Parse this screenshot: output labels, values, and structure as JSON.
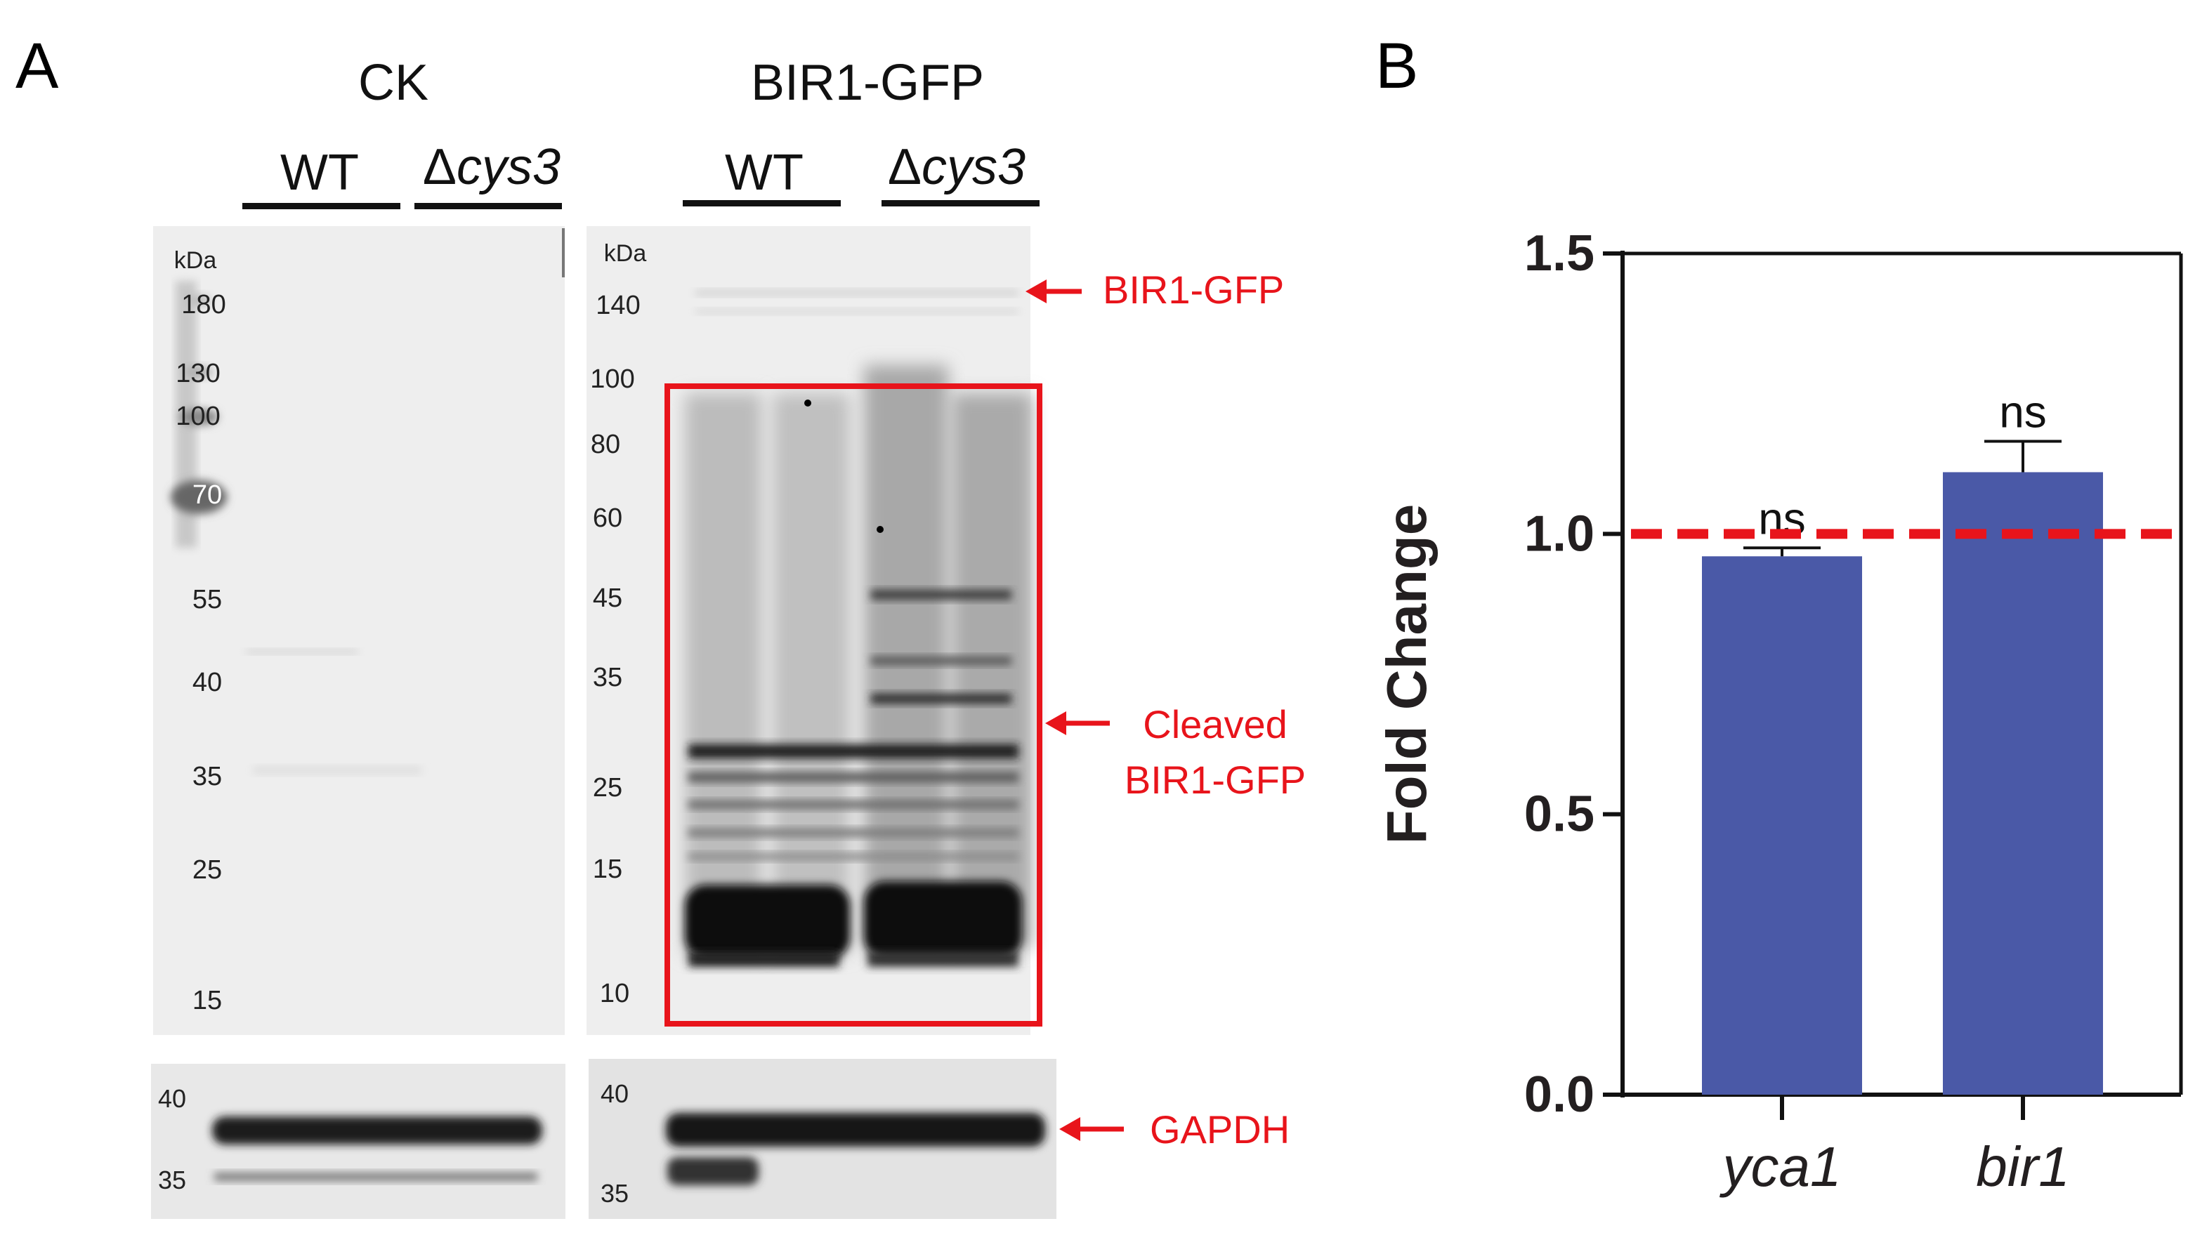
{
  "panel_a": {
    "label": "A",
    "ck": {
      "title": "CK",
      "lane_groups": [
        {
          "label": "WT",
          "italic": ""
        },
        {
          "label": "Δ",
          "italic": "cys3"
        }
      ],
      "marker_unit": "kDa",
      "markers": [
        "180",
        "130",
        "100",
        "70",
        "55",
        "40",
        "35",
        "25",
        "15"
      ],
      "loading_markers": [
        "40",
        "35"
      ]
    },
    "bir": {
      "title": "BIR1-GFP",
      "lane_groups": [
        {
          "label": "WT",
          "italic": ""
        },
        {
          "label": "Δ",
          "italic": "cys3"
        }
      ],
      "marker_unit": "kDa",
      "markers": [
        "140",
        "100",
        "80",
        "60",
        "45",
        "35",
        "25",
        "15",
        "10"
      ],
      "loading_markers": [
        "40",
        "35"
      ]
    },
    "annotations": {
      "full_length": "BIR1-GFP",
      "cleaved_line1": "Cleaved",
      "cleaved_line2": "BIR1-GFP",
      "loading": "GAPDH"
    },
    "annotation_color": "#e8141b"
  },
  "panel_b": {
    "label": "B",
    "bar_color": "#4a59a7",
    "reference_line_color": "#e8141b"
  },
  "chart_data": {
    "type": "bar",
    "categories": [
      "yca1",
      "bir1"
    ],
    "values": [
      0.96,
      1.11
    ],
    "errors": [
      0.015,
      0.055
    ],
    "significance": [
      "ns",
      "ns"
    ],
    "ylabel": "Fold Change",
    "ylim": [
      0,
      1.5
    ],
    "yticks": [
      "0.0",
      "0.5",
      "1.0",
      "1.5"
    ],
    "reference_line": 1.0,
    "grid": false
  }
}
